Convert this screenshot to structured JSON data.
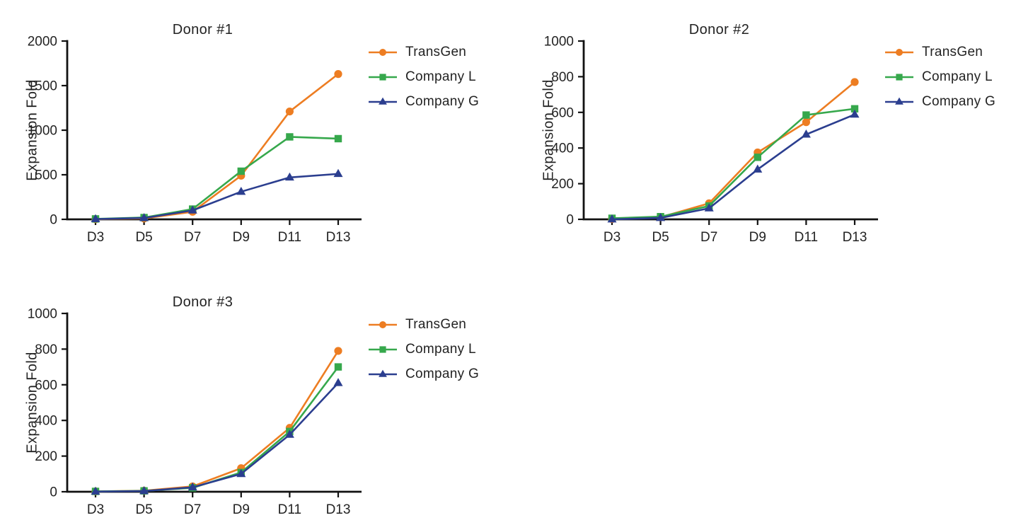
{
  "figure": {
    "y_axis_label": "Expansion Fold",
    "text_color": "#232323",
    "axis_color": "#111111",
    "background": "#ffffff",
    "legend": [
      {
        "name": "TransGen",
        "color": "#ED7D22",
        "marker": "circle"
      },
      {
        "name": "Company L",
        "color": "#36A84C",
        "marker": "square"
      },
      {
        "name": "Company G",
        "color": "#2B3E8F",
        "marker": "triangle"
      }
    ]
  },
  "chart_data": [
    {
      "type": "line",
      "title": "Donor #1",
      "xlabel": "",
      "ylabel": "Expansion Fold",
      "categories": [
        "D3",
        "D5",
        "D7",
        "D9",
        "D11",
        "D13"
      ],
      "ylim": [
        0,
        2000
      ],
      "yticks": [
        0,
        500,
        1000,
        1500,
        2000
      ],
      "grid": false,
      "legend_position": "right",
      "series": [
        {
          "name": "TransGen",
          "marker": "circle",
          "color": "#ED7D22",
          "values": [
            2,
            10,
            85,
            490,
            1210,
            1630
          ]
        },
        {
          "name": "Company L",
          "marker": "square",
          "color": "#36A84C",
          "values": [
            5,
            20,
            115,
            540,
            925,
            905
          ]
        },
        {
          "name": "Company G",
          "marker": "triangle",
          "color": "#2B3E8F",
          "values": [
            3,
            15,
            100,
            310,
            470,
            510
          ]
        }
      ]
    },
    {
      "type": "line",
      "title": "Donor #2",
      "xlabel": "",
      "ylabel": "Expansion Fold",
      "categories": [
        "D3",
        "D5",
        "D7",
        "D9",
        "D11",
        "D13"
      ],
      "ylim": [
        0,
        1000
      ],
      "yticks": [
        0,
        200,
        400,
        600,
        800,
        1000
      ],
      "grid": false,
      "legend_position": "right",
      "series": [
        {
          "name": "TransGen",
          "marker": "circle",
          "color": "#ED7D22",
          "values": [
            2,
            12,
            90,
            375,
            545,
            770
          ]
        },
        {
          "name": "Company L",
          "marker": "square",
          "color": "#36A84C",
          "values": [
            6,
            15,
            75,
            348,
            585,
            620
          ]
        },
        {
          "name": "Company G",
          "marker": "triangle",
          "color": "#2B3E8F",
          "values": [
            0,
            8,
            62,
            280,
            476,
            588
          ]
        }
      ]
    },
    {
      "type": "line",
      "title": "Donor #3",
      "xlabel": "",
      "ylabel": "Expansion Fold",
      "categories": [
        "D3",
        "D5",
        "D7",
        "D9",
        "D11",
        "D13"
      ],
      "ylim": [
        0,
        1000
      ],
      "yticks": [
        0,
        200,
        400,
        600,
        800,
        1000
      ],
      "grid": false,
      "legend_position": "right",
      "series": [
        {
          "name": "TransGen",
          "marker": "circle",
          "color": "#ED7D22",
          "values": [
            2,
            6,
            30,
            132,
            358,
            790
          ]
        },
        {
          "name": "Company L",
          "marker": "square",
          "color": "#36A84C",
          "values": [
            2,
            5,
            22,
            108,
            338,
            700
          ]
        },
        {
          "name": "Company G",
          "marker": "triangle",
          "color": "#2B3E8F",
          "values": [
            1,
            4,
            25,
            100,
            320,
            610
          ]
        }
      ]
    }
  ]
}
